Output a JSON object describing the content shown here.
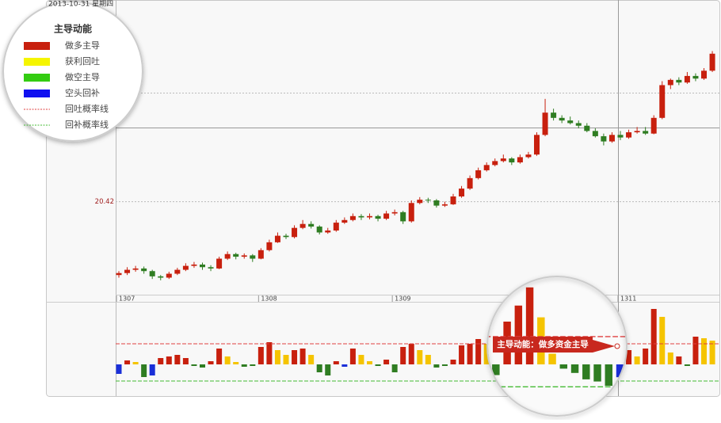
{
  "header": {
    "date": "2013-10-31 星期四"
  },
  "chart_data": [
    {
      "type": "candlestick",
      "categories": [
        "1307",
        null,
        null,
        null,
        null,
        null,
        null,
        null,
        null,
        null,
        null,
        null,
        null,
        null,
        null,
        null,
        null,
        "1308",
        null,
        null,
        null,
        null,
        null,
        null,
        null,
        null,
        null,
        null,
        null,
        null,
        null,
        null,
        null,
        "1309",
        null,
        null,
        null,
        null,
        null,
        null,
        null,
        null,
        null,
        null,
        null,
        null,
        null,
        null,
        null,
        null,
        null,
        null,
        null,
        null,
        null,
        null,
        null,
        null,
        null,
        null,
        "1311",
        null,
        null,
        null,
        null,
        null,
        null,
        null,
        null,
        null,
        null,
        null
      ],
      "ohlc": [
        [
          19.3,
          19.36,
          19.26,
          19.33
        ],
        [
          19.33,
          19.42,
          19.3,
          19.38
        ],
        [
          19.38,
          19.44,
          19.35,
          19.4
        ],
        [
          19.4,
          19.43,
          19.32,
          19.36
        ],
        [
          19.36,
          19.38,
          19.24,
          19.28
        ],
        [
          19.28,
          19.3,
          19.22,
          19.26
        ],
        [
          19.26,
          19.35,
          19.24,
          19.32
        ],
        [
          19.32,
          19.41,
          19.3,
          19.38
        ],
        [
          19.38,
          19.48,
          19.36,
          19.44
        ],
        [
          19.44,
          19.5,
          19.41,
          19.46
        ],
        [
          19.46,
          19.49,
          19.38,
          19.42
        ],
        [
          19.42,
          19.45,
          19.36,
          19.4
        ],
        [
          19.4,
          19.58,
          19.39,
          19.55
        ],
        [
          19.55,
          19.66,
          19.53,
          19.62
        ],
        [
          19.62,
          19.64,
          19.54,
          19.58
        ],
        [
          19.58,
          19.63,
          19.55,
          19.6
        ],
        [
          19.6,
          19.62,
          19.5,
          19.55
        ],
        [
          19.55,
          19.71,
          19.54,
          19.68
        ],
        [
          19.68,
          19.84,
          19.66,
          19.8
        ],
        [
          19.8,
          19.95,
          19.79,
          19.9
        ],
        [
          19.9,
          19.93,
          19.85,
          19.88
        ],
        [
          19.88,
          20.06,
          19.86,
          20.02
        ],
        [
          20.02,
          20.14,
          20.0,
          20.08
        ],
        [
          20.08,
          20.12,
          20.01,
          20.04
        ],
        [
          20.04,
          20.06,
          19.92,
          19.95
        ],
        [
          19.95,
          20.02,
          19.93,
          19.98
        ],
        [
          19.98,
          20.14,
          19.96,
          20.1
        ],
        [
          20.1,
          20.18,
          20.08,
          20.14
        ],
        [
          20.14,
          20.24,
          20.12,
          20.2
        ],
        [
          20.2,
          20.23,
          20.14,
          20.18
        ],
        [
          20.18,
          20.24,
          20.15,
          20.2
        ],
        [
          20.2,
          20.22,
          20.12,
          20.16
        ],
        [
          20.16,
          20.28,
          20.14,
          20.24
        ],
        [
          20.24,
          20.3,
          20.21,
          20.26
        ],
        [
          20.26,
          20.28,
          20.08,
          20.12
        ],
        [
          20.12,
          20.44,
          20.1,
          20.4
        ],
        [
          20.4,
          20.49,
          20.38,
          20.45
        ],
        [
          20.45,
          20.48,
          20.4,
          20.44
        ],
        [
          20.44,
          20.46,
          20.33,
          20.36
        ],
        [
          20.36,
          20.42,
          20.34,
          20.38
        ],
        [
          20.38,
          20.54,
          20.37,
          20.5
        ],
        [
          20.5,
          20.66,
          20.48,
          20.62
        ],
        [
          20.62,
          20.82,
          20.6,
          20.78
        ],
        [
          20.78,
          20.94,
          20.76,
          20.9
        ],
        [
          20.9,
          21.02,
          20.88,
          20.98
        ],
        [
          20.98,
          21.08,
          20.96,
          21.04
        ],
        [
          21.04,
          21.14,
          21.02,
          21.08
        ],
        [
          21.08,
          21.1,
          20.98,
          21.02
        ],
        [
          21.02,
          21.14,
          21.0,
          21.1
        ],
        [
          21.1,
          21.18,
          21.08,
          21.14
        ],
        [
          21.14,
          21.48,
          21.12,
          21.44
        ],
        [
          21.44,
          21.99,
          21.42,
          21.78
        ],
        [
          21.78,
          21.84,
          21.66,
          21.7
        ],
        [
          21.7,
          21.74,
          21.62,
          21.66
        ],
        [
          21.66,
          21.72,
          21.6,
          21.62
        ],
        [
          21.62,
          21.66,
          21.54,
          21.58
        ],
        [
          21.58,
          21.62,
          21.48,
          21.5
        ],
        [
          21.5,
          21.54,
          21.4,
          21.42
        ],
        [
          21.42,
          21.46,
          21.28,
          21.34
        ],
        [
          21.34,
          21.48,
          21.32,
          21.44
        ],
        [
          21.44,
          21.5,
          21.36,
          21.4
        ],
        [
          21.4,
          21.52,
          21.38,
          21.48
        ],
        [
          21.48,
          21.56,
          21.46,
          21.5
        ],
        [
          21.5,
          21.56,
          21.44,
          21.46
        ],
        [
          21.46,
          21.74,
          21.45,
          21.7
        ],
        [
          21.7,
          22.26,
          21.68,
          22.2
        ],
        [
          22.2,
          22.3,
          22.14,
          22.28
        ],
        [
          22.28,
          22.32,
          22.2,
          22.24
        ],
        [
          22.24,
          22.4,
          22.22,
          22.34
        ],
        [
          22.34,
          22.38,
          22.26,
          22.3
        ],
        [
          22.3,
          22.46,
          22.28,
          22.42
        ],
        [
          22.42,
          22.72,
          22.4,
          22.68
        ]
      ],
      "up_color": "#c8200e",
      "down_color": "#2f7d22",
      "ylim": [
        19,
        23.5
      ],
      "yticks": [
        20.42
      ]
    },
    {
      "type": "bar",
      "values": [
        -12,
        5,
        3,
        -16,
        -14,
        8,
        10,
        12,
        8,
        -2,
        -4,
        4,
        20,
        10,
        3,
        -3,
        -2,
        22,
        28,
        18,
        12,
        18,
        20,
        12,
        -10,
        -14,
        4,
        -3,
        20,
        12,
        4,
        -2,
        6,
        -10,
        22,
        26,
        18,
        12,
        -4,
        -2,
        6,
        24,
        26,
        32,
        26,
        14,
        -6,
        -10,
        40,
        55,
        72,
        44,
        10,
        -4,
        -8,
        -14,
        -16,
        -20,
        -12,
        -16,
        12,
        18,
        10,
        20,
        70,
        60,
        15,
        10,
        -2,
        35,
        33,
        30
      ],
      "colors": [
        "#1a2fd8",
        "#c8200e",
        "#f5c400",
        "#2f7d22",
        "#1a2fd8",
        "#c8200e",
        "#c8200e",
        "#c8200e",
        "#c8200e",
        "#2f7d22",
        "#2f7d22",
        "#c8200e",
        "#c8200e",
        "#f5c400",
        "#f5c400",
        "#2f7d22",
        "#2f7d22",
        "#c8200e",
        "#c8200e",
        "#f5c400",
        "#f5c400",
        "#c8200e",
        "#c8200e",
        "#f5c400",
        "#2f7d22",
        "#2f7d22",
        "#c8200e",
        "#1a2fd8",
        "#c8200e",
        "#f5c400",
        "#f5c400",
        "#2f7d22",
        "#c8200e",
        "#2f7d22",
        "#c8200e",
        "#c8200e",
        "#f5c400",
        "#f5c400",
        "#2f7d22",
        "#2f7d22",
        "#c8200e",
        "#c8200e",
        "#c8200e",
        "#c8200e",
        "#f5c400",
        "#f5c400",
        "#2f7d22",
        "#2f7d22",
        "#c8200e",
        "#c8200e",
        "#c8200e",
        "#f5c400",
        "#f5c400",
        "#2f7d22",
        "#2f7d22",
        "#2f7d22",
        "#2f7d22",
        "#2f7d22",
        "#1a2fd8",
        "#2f7d22",
        "#c8200e",
        "#c8200e",
        "#f5c400",
        "#c8200e",
        "#c8200e",
        "#f5c400",
        "#f5c400",
        "#c8200e",
        "#2f7d22",
        "#c8200e",
        "#f5c400",
        "#f5c400"
      ],
      "ylim": [
        -40,
        78
      ],
      "legend_title": "主导动能",
      "legend": [
        {
          "name": "做多主导",
          "color": "#c8200e"
        },
        {
          "name": "获利回吐",
          "color": "#f5f500"
        },
        {
          "name": "做空主导",
          "color": "#33cc11"
        },
        {
          "name": "空头回补",
          "color": "#1010f0"
        },
        {
          "name": "回吐概率线",
          "color": "#e04040",
          "value": 26
        },
        {
          "name": "回补概率线",
          "color": "#44bb33",
          "value": -21
        }
      ],
      "annotation": "主导动能：做多资金主导"
    }
  ]
}
